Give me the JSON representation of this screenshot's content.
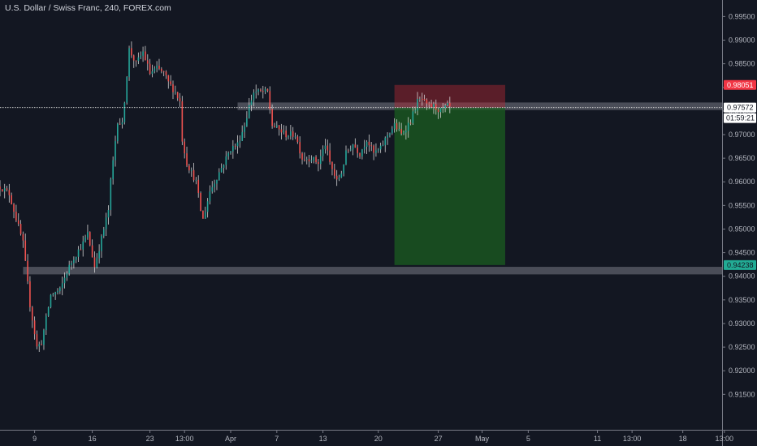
{
  "chart_title": "U.S. Dollar / Swiss Franc, 240, FOREX.com",
  "colors": {
    "background": "#131722",
    "axis_line": "#787b86",
    "up_candle": "#26a69a",
    "down_candle": "#ef5350",
    "support_zone": "#5d606b",
    "stop_zone": "#b22833",
    "target_zone": "#1b5e20",
    "stop_badge": "#f23645",
    "target_badge": "#22ab94",
    "price_badge": "#ffffff",
    "timer_badge": "#ffffff"
  },
  "price_labels": {
    "stop_price": "0.98051",
    "current_price": "0.97572",
    "timer": "01:59:21",
    "target_price": "0.94238"
  },
  "chart_data": {
    "type": "candlestick",
    "symbol": "U.S. Dollar / Swiss Franc",
    "interval": "240",
    "source": "FOREX.com",
    "ylim": [
      0.912,
      1.0
    ],
    "y_ticks": [
      "0.99500",
      "0.99000",
      "0.98500",
      "0.98000",
      "0.97500",
      "0.97000",
      "0.96500",
      "0.96000",
      "0.95500",
      "0.95000",
      "0.94500",
      "0.94000",
      "0.93500",
      "0.93000",
      "0.92500",
      "0.92000",
      "0.91500"
    ],
    "x_ticks": [
      "9",
      "16",
      "23",
      "13:00",
      "Apr",
      "7",
      "13",
      "20",
      "27",
      "May",
      "5",
      "11",
      "13:00",
      "18",
      "13:00"
    ],
    "bar_index_range": [
      0,
      315
    ],
    "x_tick_bars": [
      15,
      40,
      65,
      80,
      100,
      120,
      140,
      164,
      190,
      209,
      229,
      259,
      274,
      296,
      314
    ],
    "price_path": [
      [
        0,
        0.959,
        0.9565
      ],
      [
        4,
        0.9575,
        0.9565
      ],
      [
        6,
        0.954,
        0.9565
      ],
      [
        10,
        0.947,
        0.9565
      ],
      [
        13,
        0.934,
        0.9565
      ],
      [
        16,
        0.925,
        0.9565
      ],
      [
        18,
        0.926,
        0.9565
      ],
      [
        22,
        0.936,
        0.9565
      ],
      [
        26,
        0.937,
        0.9565
      ],
      [
        29,
        0.941,
        0.9565
      ],
      [
        32,
        0.944,
        0.9565
      ],
      [
        36,
        0.947,
        0.9565
      ],
      [
        38,
        0.949,
        0.9565
      ],
      [
        41,
        0.942,
        0.9565
      ],
      [
        45,
        0.95,
        0.9565
      ],
      [
        47,
        0.954,
        0.9565
      ],
      [
        48,
        0.96,
        0.9565
      ],
      [
        51,
        0.973,
        0.9565
      ],
      [
        53,
        0.972,
        0.9565
      ],
      [
        56,
        0.988,
        0.9565
      ],
      [
        59,
        0.985,
        0.9565
      ],
      [
        62,
        0.9875,
        0.9565
      ],
      [
        65,
        0.983,
        0.9565
      ],
      [
        68,
        0.984,
        0.9565
      ],
      [
        71,
        0.983,
        0.9565
      ],
      [
        73,
        0.981,
        0.9565
      ],
      [
        76,
        0.979,
        0.9565
      ],
      [
        78,
        0.977,
        0.9565
      ],
      [
        79,
        0.969,
        0.9565
      ],
      [
        81,
        0.964,
        0.9565
      ],
      [
        85,
        0.96,
        0.9565
      ],
      [
        87,
        0.954,
        0.9565
      ],
      [
        88,
        0.952,
        0.9565
      ],
      [
        91,
        0.958,
        0.9565
      ],
      [
        94,
        0.961,
        0.9565
      ],
      [
        97,
        0.964,
        0.9565
      ],
      [
        100,
        0.967,
        0.9565
      ],
      [
        103,
        0.968,
        0.9565
      ],
      [
        106,
        0.972,
        0.9565
      ],
      [
        108,
        0.976,
        0.9565
      ],
      [
        110,
        0.979,
        0.9565
      ],
      [
        113,
        0.979,
        0.9565
      ],
      [
        116,
        0.979,
        0.9565
      ],
      [
        118,
        0.972,
        0.9565
      ],
      [
        121,
        0.971,
        0.9565
      ],
      [
        124,
        0.97,
        0.9565
      ],
      [
        128,
        0.97,
        0.9565
      ],
      [
        131,
        0.965,
        0.9565
      ],
      [
        135,
        0.965,
        0.9565
      ],
      [
        138,
        0.964,
        0.9565
      ],
      [
        141,
        0.968,
        0.9565
      ],
      [
        143,
        0.964,
        0.9565
      ],
      [
        146,
        0.96,
        0.9565
      ],
      [
        148,
        0.962,
        0.9565
      ],
      [
        150,
        0.966,
        0.9565
      ],
      [
        153,
        0.968,
        0.9565
      ],
      [
        156,
        0.966,
        0.9565
      ],
      [
        159,
        0.969,
        0.9565
      ],
      [
        162,
        0.966,
        0.9565
      ],
      [
        165,
        0.967,
        0.9565
      ],
      [
        168,
        0.97,
        0.9565
      ],
      [
        171,
        0.972,
        0.9565
      ],
      [
        174,
        0.97,
        0.9565
      ],
      [
        178,
        0.973,
        0.9565
      ],
      [
        181,
        0.977,
        0.9565
      ],
      [
        183,
        0.9775,
        0.9565
      ],
      [
        185,
        0.976,
        0.9565
      ],
      [
        188,
        0.976,
        0.9565
      ],
      [
        191,
        0.975,
        0.9565
      ],
      [
        194,
        0.976,
        0.9565
      ],
      [
        195,
        0.9757,
        0.9565
      ]
    ],
    "zones": [
      {
        "kind": "support",
        "from_bar": 103,
        "to_bar": 315,
        "y_low": 0.9752,
        "y_high": 0.9768
      },
      {
        "kind": "support",
        "from_bar": 10,
        "to_bar": 315,
        "y_low": 0.9404,
        "y_high": 0.942
      },
      {
        "kind": "stop",
        "from_bar": 171,
        "to_bar": 219,
        "y_low": 0.97572,
        "y_high": 0.98051
      },
      {
        "kind": "target",
        "from_bar": 171,
        "to_bar": 219,
        "y_low": 0.94238,
        "y_high": 0.97572
      }
    ],
    "current_price": 0.97572,
    "stop_price": 0.98051,
    "target_price": 0.94238
  }
}
